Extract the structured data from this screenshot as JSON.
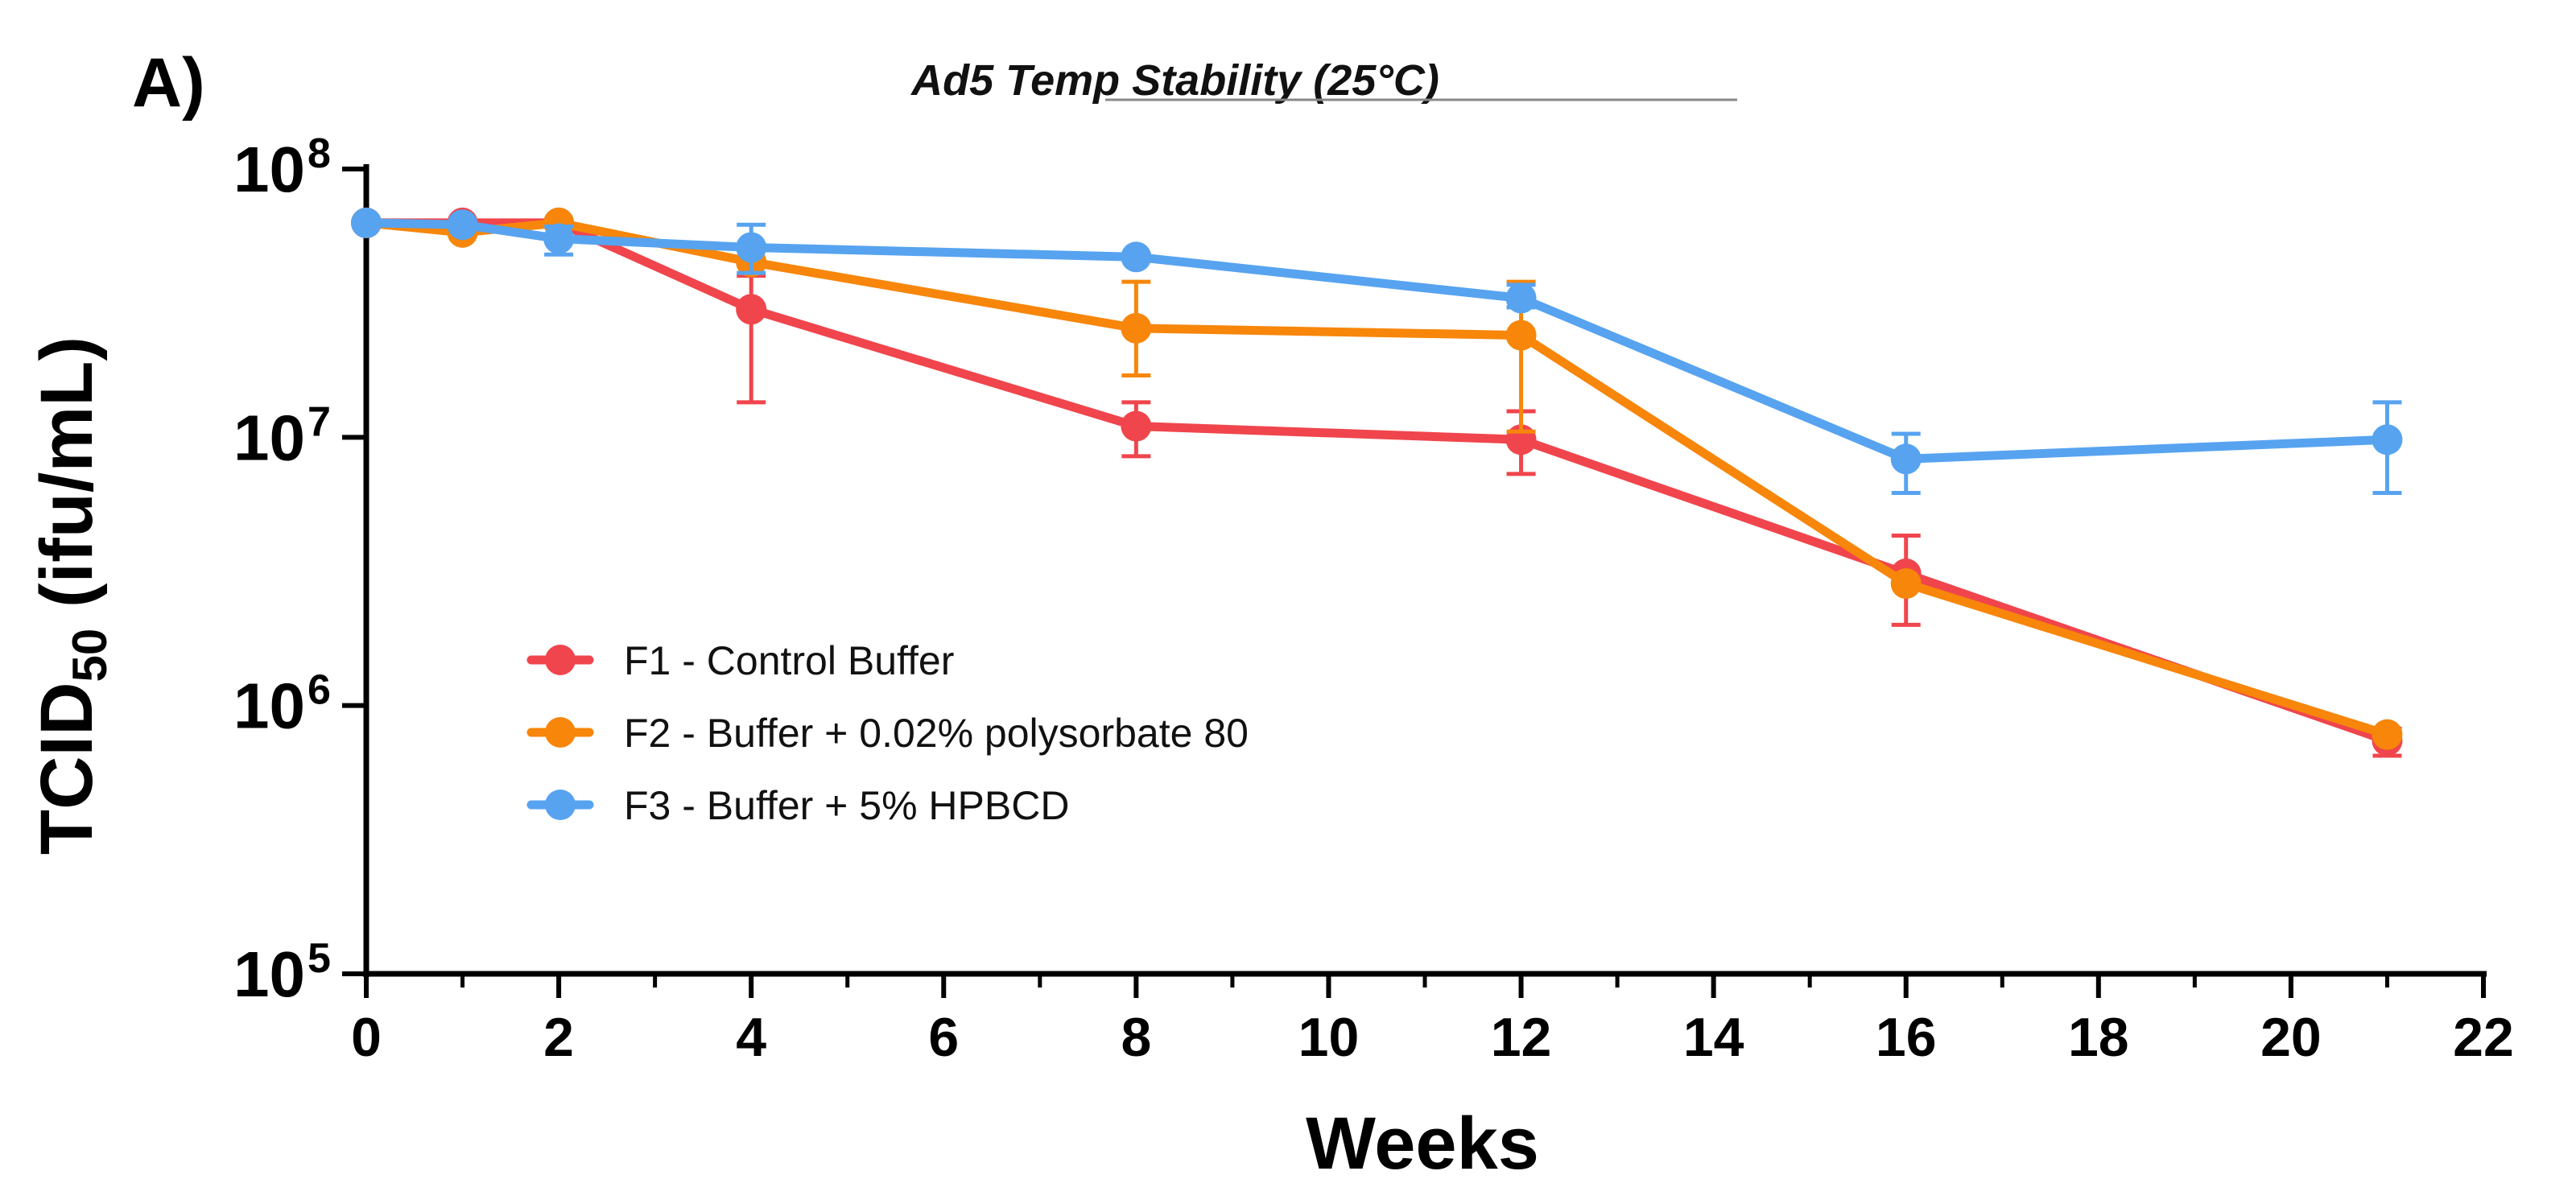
{
  "panel_label": "A)",
  "chart_data": {
    "type": "line",
    "title": "Ad5 Temp Stability (25°C)",
    "xlabel": "Weeks",
    "ylabel": {
      "main": "TCID",
      "subscript": "50",
      "unit": " (ifu/mL)"
    },
    "xlim": [
      0,
      22
    ],
    "x_major_ticks": [
      0,
      2,
      4,
      6,
      8,
      10,
      12,
      14,
      16,
      18,
      20,
      22
    ],
    "x_tick_labels": [
      "0",
      "2",
      "4",
      "6",
      "8",
      "10",
      "12",
      "14",
      "16",
      "18",
      "20",
      "22"
    ],
    "x_minor_ticks": [
      1,
      3,
      5,
      7,
      9,
      11,
      13,
      15,
      17,
      19,
      21
    ],
    "yscale": "log",
    "ylim": [
      100000,
      100000000
    ],
    "y_ticks": [
      {
        "value": 100000000,
        "base": "10",
        "exp": "8"
      },
      {
        "value": 10000000,
        "base": "10",
        "exp": "7"
      },
      {
        "value": 1000000,
        "base": "10",
        "exp": "6"
      },
      {
        "value": 100000,
        "base": "10",
        "exp": "5"
      }
    ],
    "legend_position": "lower-left",
    "series": [
      {
        "name": "F1 - Control Buffer",
        "color": "#f0454c",
        "x": [
          0,
          1,
          2,
          4,
          8,
          12,
          16,
          21
        ],
        "values": [
          63000000,
          63000000,
          63000000,
          30000000,
          11000000,
          9800000,
          3100000,
          740000
        ],
        "err_low": [
          null,
          null,
          null,
          13500000,
          8500000,
          7300000,
          2000000,
          650000
        ],
        "err_high": [
          null,
          null,
          null,
          40000000,
          13500000,
          12500000,
          4300000,
          820000
        ]
      },
      {
        "name": "F2 - Buffer + 0.02% polysorbate 80",
        "color": "#f7860a",
        "x": [
          0,
          1,
          2,
          4,
          8,
          12,
          16,
          21
        ],
        "values": [
          63000000,
          58000000,
          63000000,
          45000000,
          25500000,
          24000000,
          2850000,
          780000
        ],
        "err_low": [
          null,
          null,
          null,
          null,
          17000000,
          10500000,
          null,
          null
        ],
        "err_high": [
          null,
          null,
          null,
          null,
          38000000,
          38000000,
          null,
          null
        ]
      },
      {
        "name": "F3 - Buffer + 5% HPBCD",
        "color": "#57a3f0",
        "x": [
          0,
          1,
          2,
          4,
          8,
          12,
          16,
          21
        ],
        "values": [
          63000000,
          62000000,
          55000000,
          51000000,
          47000000,
          33000000,
          8300000,
          9800000
        ],
        "err_low": [
          null,
          null,
          48000000,
          41000000,
          null,
          30500000,
          6200000,
          6200000
        ],
        "err_high": [
          null,
          null,
          61000000,
          62000000,
          null,
          37000000,
          10300000,
          13500000
        ]
      }
    ]
  }
}
